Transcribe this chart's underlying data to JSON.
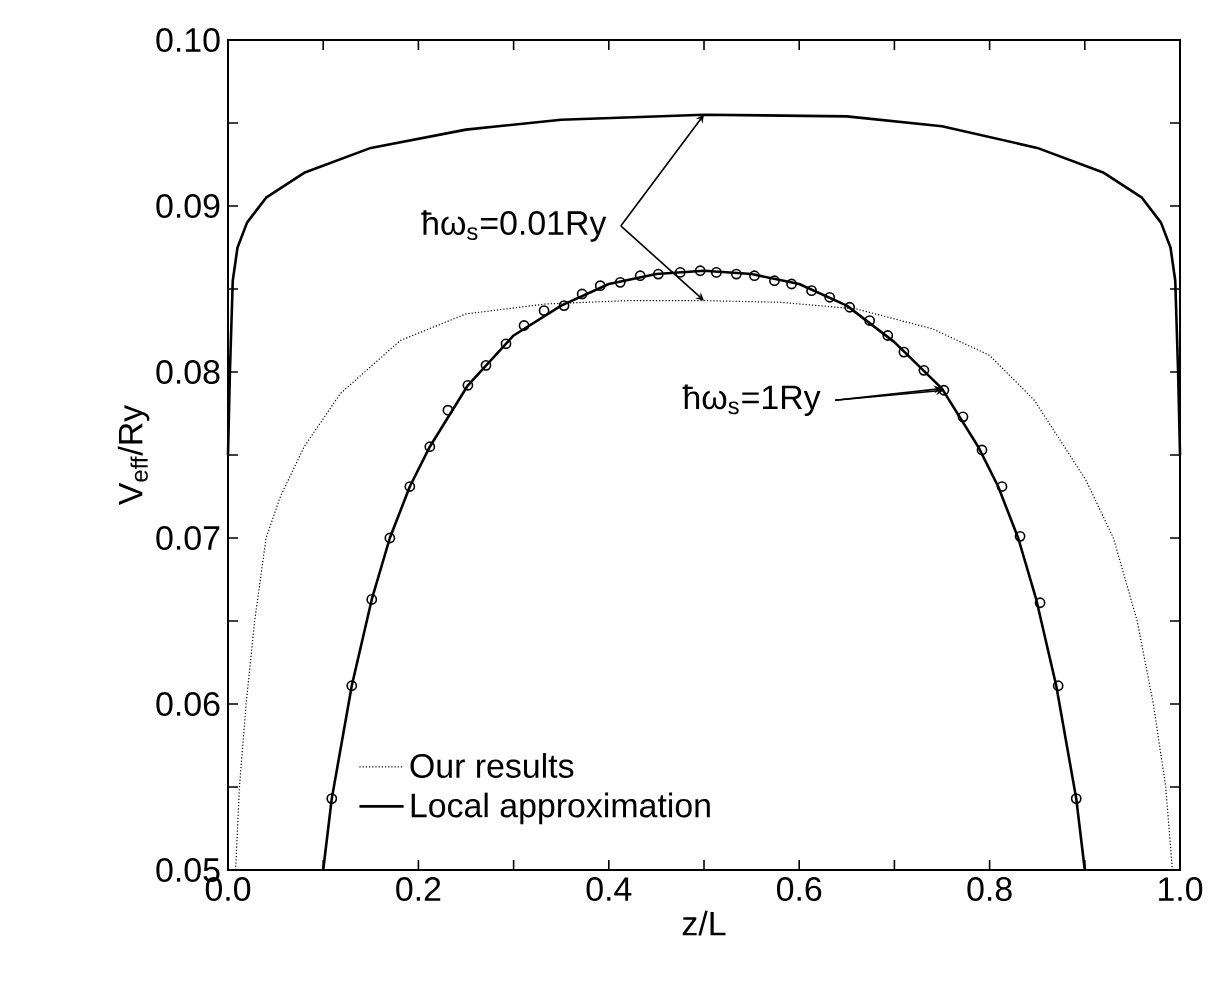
{
  "chart_data": {
    "type": "line",
    "xlabel": "z/L",
    "ylabel": "V$_{eff}$/Ry",
    "xlim": [
      0,
      1
    ],
    "ylim": [
      0.05,
      0.1
    ],
    "xticks": [
      {
        "value": 0,
        "label": "0.0"
      },
      {
        "value": 0.1,
        "label": null
      },
      0.2,
      {
        "value": 0.3,
        "label": null
      },
      0.4,
      {
        "value": 0.5,
        "label": null
      },
      0.6,
      {
        "value": 0.7,
        "label": null
      },
      0.8,
      {
        "value": 0.9,
        "label": null
      },
      {
        "value": 1,
        "label": "1.0"
      }
    ],
    "yticks": [
      0.05,
      {
        "value": 0.055,
        "label": null
      },
      0.06,
      {
        "value": 0.065,
        "label": null
      },
      0.07,
      {
        "value": 0.075,
        "label": null
      },
      0.08,
      {
        "value": 0.085,
        "label": null
      },
      0.09,
      {
        "value": 0.095,
        "label": null
      },
      {
        "value": 0.1,
        "label": "0.10"
      }
    ],
    "legend": "bottom left",
    "series": [
      {
        "name": "Our results",
        "color": "#000000",
        "line_style": "dotted",
        "x": [
          0.008,
          0.012,
          0.019,
          0.028,
          0.04,
          0.055,
          0.08,
          0.118,
          0.181,
          0.25,
          0.334,
          0.42,
          0.5,
          0.58,
          0.66,
          0.74,
          0.8,
          0.847,
          0.901,
          0.93,
          0.955,
          0.972,
          0.985,
          0.992
        ],
        "values": [
          0.05,
          0.055,
          0.06,
          0.065,
          0.07,
          0.0725,
          0.0755,
          0.0787,
          0.0819,
          0.0835,
          0.0841,
          0.0843,
          0.0843,
          0.0842,
          0.0838,
          0.0826,
          0.081,
          0.0783,
          0.0735,
          0.07,
          0.065,
          0.06,
          0.055,
          0.05
        ]
      },
      {
        "name": "Local approximation",
        "color": "#000000",
        "line_style": "solid",
        "x": [
          0,
          0.002,
          0.005,
          0.01,
          0.02,
          0.04,
          0.08,
          0.15,
          0.25,
          0.35,
          0.5,
          0.65,
          0.75,
          0.85,
          0.92,
          0.96,
          0.98,
          0.99,
          0.995,
          0.998,
          1
        ],
        "values": [
          0.075,
          0.08,
          0.0855,
          0.0875,
          0.089,
          0.0905,
          0.092,
          0.0935,
          0.0946,
          0.0952,
          0.0955,
          0.0954,
          0.0948,
          0.0935,
          0.092,
          0.0905,
          0.089,
          0.0875,
          0.0855,
          0.08,
          0.075
        ]
      },
      {
        "type": "scatter",
        "marker": "circle",
        "color": "#000000",
        "x": [
          0.109,
          0.13,
          0.151,
          0.17,
          0.191,
          0.212,
          0.231,
          0.252,
          0.271,
          0.292,
          0.311,
          0.332,
          0.353,
          0.372,
          0.391,
          0.412,
          0.433,
          0.452,
          0.475,
          0.496,
          0.513,
          0.534,
          0.553,
          0.574,
          0.592,
          0.613,
          0.632,
          0.653,
          0.674,
          0.693,
          0.71,
          0.731,
          0.752,
          0.772,
          0.792,
          0.813,
          0.832,
          0.853,
          0.872,
          0.891
        ],
        "values": [
          0.0543,
          0.0611,
          0.0663,
          0.07,
          0.0731,
          0.0755,
          0.0777,
          0.0792,
          0.0804,
          0.0817,
          0.0828,
          0.0837,
          0.084,
          0.0847,
          0.0852,
          0.0854,
          0.0858,
          0.0859,
          0.086,
          0.0861,
          0.086,
          0.0859,
          0.0858,
          0.0855,
          0.0853,
          0.0849,
          0.0845,
          0.0839,
          0.0831,
          0.0822,
          0.0812,
          0.0801,
          0.0789,
          0.0773,
          0.0753,
          0.0731,
          0.0701,
          0.0661,
          0.0611,
          0.0543
        ]
      },
      {
        "color": "#000000",
        "line_style": "solid",
        "x": [
          0.1,
          0.109,
          0.13,
          0.151,
          0.17,
          0.191,
          0.212,
          0.252,
          0.3,
          0.35,
          0.4,
          0.45,
          0.5,
          0.55,
          0.6,
          0.65,
          0.7,
          0.75,
          0.788,
          0.809,
          0.83,
          0.849,
          0.87,
          0.891,
          0.9
        ],
        "values": [
          0.05,
          0.0543,
          0.0611,
          0.0663,
          0.07,
          0.0731,
          0.0755,
          0.0792,
          0.0822,
          0.084,
          0.0853,
          0.0859,
          0.0861,
          0.0859,
          0.0853,
          0.084,
          0.0818,
          0.079,
          0.0755,
          0.0731,
          0.07,
          0.0663,
          0.0611,
          0.0543,
          0.05
        ]
      }
    ],
    "annotations": [
      {
        "text": "ħω$_{s}$=0.01Ry",
        "x": 0.5,
        "y": 0.0955
      },
      {
        "text": "ħω$_{s}$=1Ry",
        "x": 0.752,
        "y": 0.0789
      }
    ]
  }
}
